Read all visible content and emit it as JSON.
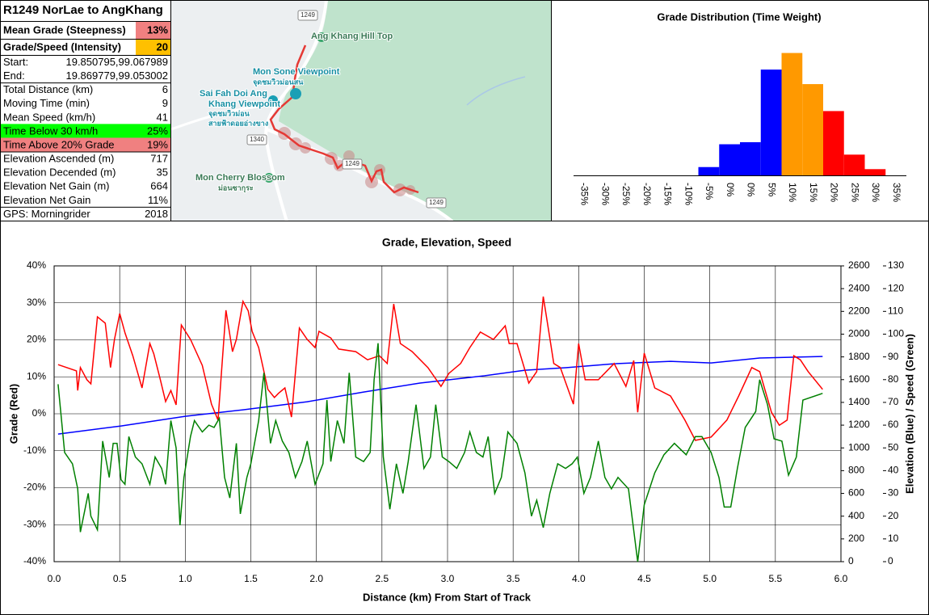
{
  "table": {
    "title": "R1249 NorLae to AngKhang",
    "rows": [
      {
        "label": "Mean Grade (Steepness)",
        "value": "13%",
        "value_bg": "#f08080",
        "bold": true
      },
      {
        "label": "Grade/Speed (Intensity)",
        "value": 20,
        "value_bg": "#ffc000",
        "bold": true
      },
      {
        "label": "Start:",
        "value": "19.850795,99.067989"
      },
      {
        "label": "End:",
        "value": "19.869779,99.053002"
      },
      {
        "label": "Total Distance (km)",
        "value": 6
      },
      {
        "label": "Moving Time (min)",
        "value": 9
      },
      {
        "label": "Mean Speed (km/h)",
        "value": 41
      },
      {
        "label": "Time Below 30 km/h",
        "value": "25%",
        "label_bg": "#00ff00",
        "value_bg": "#00ff00"
      },
      {
        "label": "Time Above 20% Grade",
        "value": "19%",
        "label_bg": "#f08080",
        "value_bg": "#f08080"
      },
      {
        "label": "Elevation Ascended (m)",
        "value": 717
      },
      {
        "label": "Elevation Decended (m)",
        "value": 35
      },
      {
        "label": "Elevation Net Gain (m)",
        "value": 664
      },
      {
        "label": "Elevation Net Gain",
        "value": "11%"
      },
      {
        "label": "GPS: Morningrider",
        "value": 2018
      }
    ]
  },
  "map": {
    "labels": [
      "1249",
      "Ang Khang Hill Top",
      "Mon Sone Viewpoint",
      "จุดชมวิวม่อนสน",
      "Sai Fah Doi Ang",
      "Khang Viewpoint",
      "จุดชมวิวม่อน",
      "สายฟ้าดอยอ่างขาง",
      "1340",
      "1249",
      "Mon Cherry Blossom",
      "ม่อนซากุระ",
      "1249"
    ]
  },
  "chart_data": [
    {
      "type": "bar",
      "title": "Grade Distribution (Time Weight)",
      "categories": [
        "-35%",
        "-30%",
        "-25%",
        "-20%",
        "-15%",
        "-10%",
        "-5%",
        "0%",
        "0%",
        "5%",
        "10%",
        "15%",
        "20%",
        "25%",
        "30%",
        "35%"
      ],
      "values": [
        0,
        0,
        0,
        0,
        0,
        0,
        4,
        15,
        16,
        51,
        59,
        44,
        31,
        10,
        3,
        0
      ],
      "colors": [
        "#0000ff",
        "#0000ff",
        "#0000ff",
        "#0000ff",
        "#0000ff",
        "#0000ff",
        "#0000ff",
        "#0000ff",
        "#0000ff",
        "#0000ff",
        "#ff9900",
        "#ff9900",
        "#ff0000",
        "#ff0000",
        "#ff0000",
        "#ff0000"
      ],
      "ylim": [
        0,
        60
      ]
    },
    {
      "type": "line",
      "title": "Grade, Elevation, Speed",
      "x_label": "Distance (km) From Start of Track",
      "y_label": "Grade (Red)",
      "y2_label": "Elevation (Blue) / Speed (Green)",
      "xlim": [
        0,
        6
      ],
      "xticks": [
        {
          "value": 0,
          "label": "0.0"
        },
        0.5,
        {
          "value": 1,
          "label": "1.0"
        },
        1.5,
        {
          "value": 2,
          "label": "2.0"
        },
        2.5,
        {
          "value": 3,
          "label": "3.0"
        },
        3.5,
        {
          "value": 4,
          "label": "4.0"
        },
        4.5,
        {
          "value": 5,
          "label": "5.0"
        },
        5.5,
        {
          "value": 6,
          "label": "6.0"
        }
      ],
      "ylim": [
        -40,
        40
      ],
      "yticks": [
        {
          "value": -40,
          "label": "-40%"
        },
        {
          "value": -30,
          "label": "-30%"
        },
        {
          "value": -20,
          "label": "-20%"
        },
        {
          "value": -10,
          "label": "-10%"
        },
        {
          "value": 0,
          "label": "0%"
        },
        {
          "value": 10,
          "label": "10%"
        },
        {
          "value": 20,
          "label": "20%"
        },
        {
          "value": 30,
          "label": "30%"
        },
        {
          "value": 40,
          "label": "40%"
        }
      ],
      "y2lim": [
        0,
        2600
      ],
      "y2ticks": [
        0,
        200,
        400,
        600,
        800,
        1000,
        1200,
        1400,
        1600,
        1800,
        2000,
        2200,
        2400,
        2600
      ],
      "y3lim": [
        0,
        130
      ],
      "y3ticks": [
        0,
        10,
        20,
        30,
        40,
        50,
        60,
        70,
        80,
        90,
        100,
        110,
        120,
        130
      ],
      "grid": true,
      "series": [
        {
          "color": "#ff0000",
          "axis": "y",
          "x": [
            0.03,
            0.17,
            0.18,
            0.2,
            0.25,
            0.28,
            0.33,
            0.39,
            0.43,
            0.46,
            0.5,
            0.54,
            0.6,
            0.67,
            0.73,
            0.76,
            0.81,
            0.85,
            0.89,
            0.93,
            0.97,
            1.04,
            1.13,
            1.2,
            1.25,
            1.31,
            1.36,
            1.39,
            1.44,
            1.48,
            1.51,
            1.56,
            1.63,
            1.68,
            1.71,
            1.76,
            1.81,
            1.87,
            1.93,
            1.99,
            2.02,
            2.11,
            2.17,
            2.3,
            2.39,
            2.48,
            2.54,
            2.59,
            2.64,
            2.73,
            2.85,
            2.95,
            3.01,
            3.1,
            3.17,
            3.25,
            3.35,
            3.44,
            3.47,
            3.53,
            3.62,
            3.68,
            3.73,
            3.78,
            3.81,
            3.86,
            3.96,
            4.0,
            4.05,
            4.15,
            4.27,
            4.36,
            4.42,
            4.45,
            4.5,
            4.58,
            4.7,
            4.81,
            4.89,
            5.01,
            5.13,
            5.22,
            5.32,
            5.38,
            5.47,
            5.53,
            5.59,
            5.64,
            5.69,
            5.75,
            5.86
          ],
          "values": [
            13.3,
            11.6,
            6.3,
            12.5,
            9.2,
            8.1,
            26.2,
            24.5,
            12.5,
            20.1,
            27.1,
            21.9,
            15.7,
            7.0,
            19.0,
            16.2,
            9.2,
            3.3,
            6.3,
            2.4,
            24.0,
            20.1,
            13.1,
            2.6,
            -1.7,
            28.0,
            16.8,
            20.1,
            30.4,
            27.8,
            22.3,
            17.9,
            6.6,
            4.4,
            5.5,
            7.0,
            -0.9,
            23.2,
            20.1,
            17.9,
            22.3,
            20.5,
            17.5,
            16.8,
            14.6,
            15.7,
            13.6,
            29.7,
            19.0,
            16.8,
            12.5,
            7.4,
            10.9,
            13.6,
            17.9,
            22.1,
            20.1,
            23.8,
            19.0,
            19.0,
            8.3,
            11.4,
            31.7,
            20.5,
            13.6,
            12.5,
            2.6,
            19.0,
            9.2,
            9.2,
            13.6,
            7.4,
            14.4,
            0.4,
            16.4,
            7.0,
            4.8,
            -1.7,
            -7.2,
            -6.3,
            -1.7,
            4.8,
            12.5,
            11.4,
            0.4,
            -3.1,
            -1.7,
            15.7,
            14.6,
            11.4,
            6.6
          ]
        },
        {
          "color": "#0000ff",
          "axis": "y2",
          "x": [
            0.03,
            0.51,
            1.0,
            1.44,
            1.93,
            2.36,
            2.79,
            3.28,
            3.59,
            3.9,
            4.27,
            4.7,
            5.01,
            5.38,
            5.86
          ],
          "values": [
            1122,
            1193,
            1278,
            1335,
            1406,
            1491,
            1570,
            1634,
            1683,
            1705,
            1740,
            1761,
            1747,
            1790,
            1804
          ]
        },
        {
          "color": "#008000",
          "axis": "y3",
          "x": [
            0.03,
            0.08,
            0.14,
            0.18,
            0.2,
            0.26,
            0.28,
            0.33,
            0.37,
            0.42,
            0.45,
            0.48,
            0.51,
            0.54,
            0.57,
            0.62,
            0.67,
            0.73,
            0.77,
            0.82,
            0.85,
            0.89,
            0.93,
            0.96,
            0.99,
            1.04,
            1.07,
            1.13,
            1.18,
            1.22,
            1.26,
            1.3,
            1.34,
            1.39,
            1.42,
            1.47,
            1.5,
            1.56,
            1.6,
            1.65,
            1.69,
            1.74,
            1.79,
            1.84,
            1.89,
            1.93,
            1.99,
            2.05,
            2.08,
            2.11,
            2.16,
            2.21,
            2.25,
            2.3,
            2.36,
            2.41,
            2.44,
            2.47,
            2.51,
            2.56,
            2.61,
            2.66,
            2.7,
            2.76,
            2.82,
            2.87,
            2.91,
            2.96,
            3.01,
            3.07,
            3.13,
            3.17,
            3.22,
            3.27,
            3.31,
            3.36,
            3.41,
            3.46,
            3.53,
            3.59,
            3.64,
            3.68,
            3.73,
            3.78,
            3.84,
            3.9,
            3.95,
            3.99,
            4.04,
            4.09,
            4.15,
            4.2,
            4.25,
            4.3,
            4.38,
            4.45,
            4.5,
            4.58,
            4.65,
            4.73,
            4.82,
            4.89,
            4.94,
            5.01,
            5.07,
            5.11,
            5.16,
            5.21,
            5.27,
            5.35,
            5.38,
            5.44,
            5.49,
            5.55,
            5.6,
            5.66,
            5.71,
            5.86
          ],
          "values": [
            78,
            48,
            43,
            32,
            13,
            30,
            20,
            14,
            53,
            37,
            52,
            52,
            36,
            34,
            55,
            46,
            43,
            34,
            46,
            41,
            34,
            62,
            50,
            16,
            37,
            55,
            62,
            57,
            60,
            59,
            63,
            37,
            28,
            52,
            21,
            37,
            43,
            62,
            83,
            52,
            62,
            53,
            48,
            37,
            44,
            53,
            34,
            43,
            71,
            44,
            62,
            52,
            83,
            46,
            44,
            48,
            80,
            96,
            46,
            23,
            43,
            30,
            44,
            69,
            41,
            46,
            69,
            46,
            44,
            41,
            48,
            57,
            48,
            46,
            55,
            30,
            37,
            57,
            52,
            39,
            20,
            27,
            15,
            30,
            43,
            41,
            43,
            46,
            30,
            37,
            53,
            37,
            32,
            37,
            32,
            0,
            25,
            39,
            47,
            52,
            47,
            55,
            55,
            48,
            37,
            24,
            24,
            41,
            59,
            66,
            80,
            69,
            54,
            53,
            38,
            46,
            71,
            74
          ]
        }
      ]
    }
  ]
}
